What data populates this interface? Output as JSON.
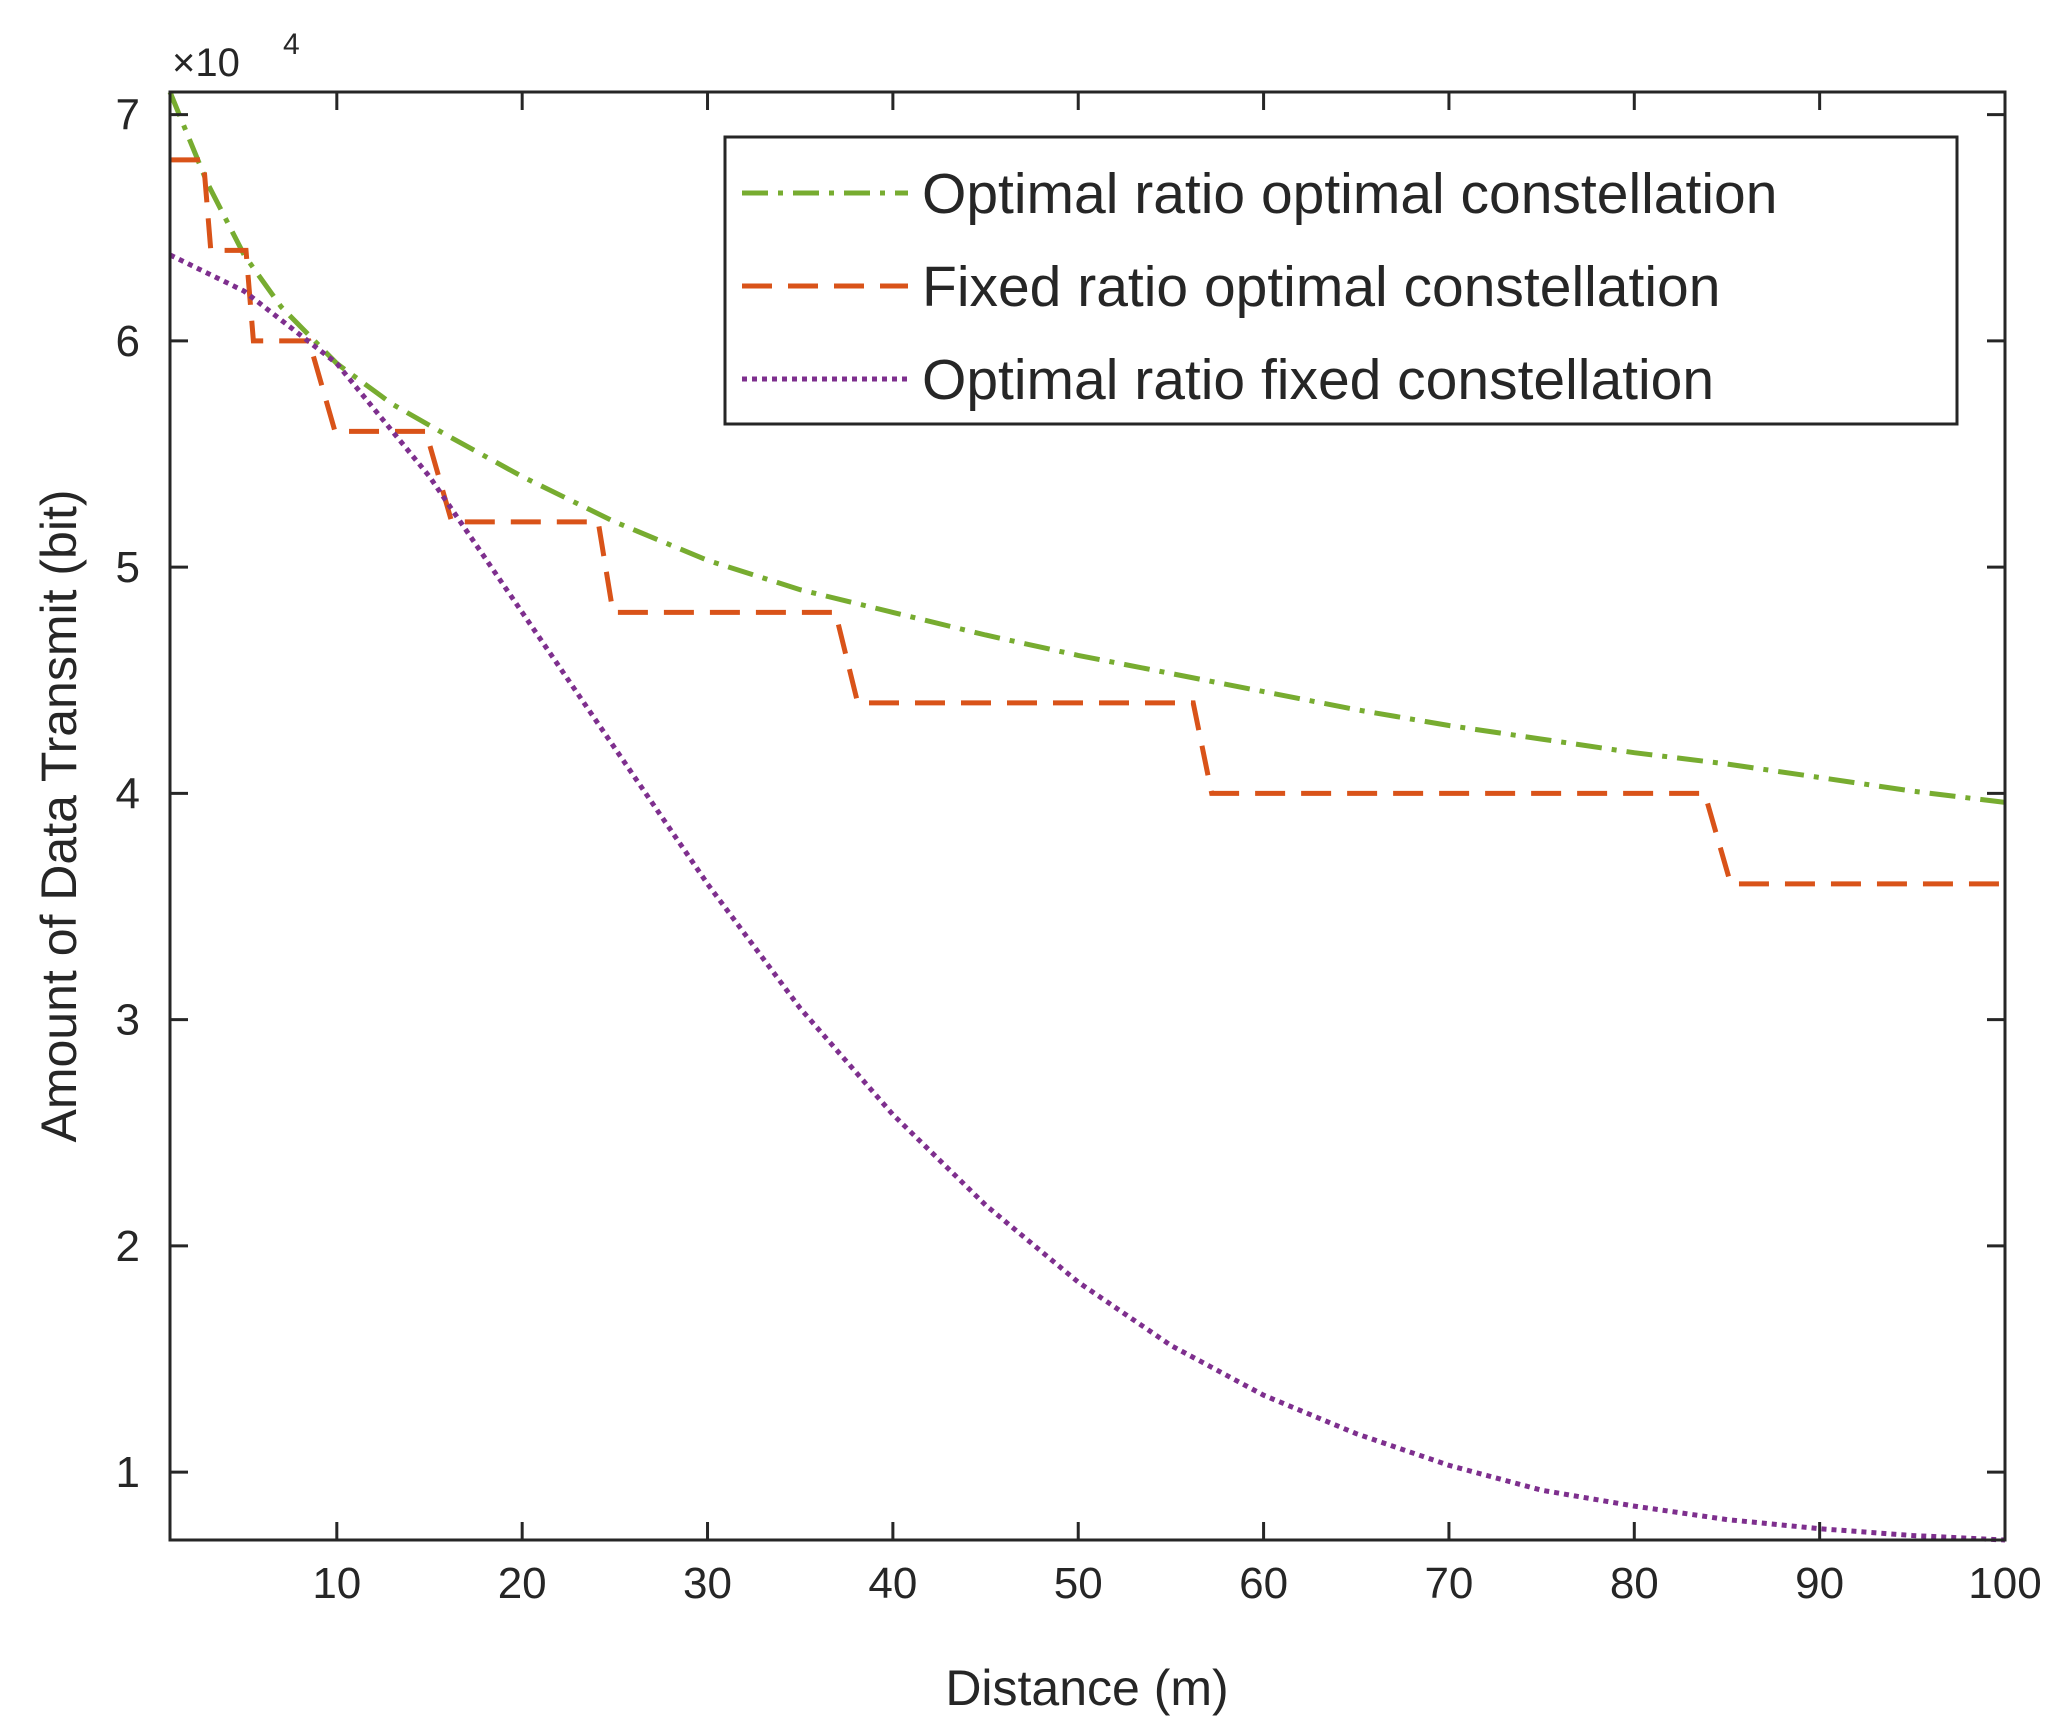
{
  "chart_data": {
    "type": "line",
    "xlabel": "Distance (m)",
    "ylabel": "Amount of Data Transmit (bit)",
    "xlim": [
      1,
      100
    ],
    "ylim": [
      0.7,
      7.1
    ],
    "y_multiplier_label": "×10",
    "y_multiplier_exponent": "4",
    "x_ticks": [
      10,
      20,
      30,
      40,
      50,
      60,
      70,
      80,
      90,
      100
    ],
    "y_ticks": [
      1,
      2,
      3,
      4,
      5,
      6,
      7
    ],
    "grid": false,
    "legend_position": "top-right",
    "series": [
      {
        "name": "Optimal ratio optimal constellation",
        "color": "#77ac30",
        "style": "dash-dot",
        "x": [
          1,
          3,
          5,
          7,
          10,
          13,
          16,
          20,
          25,
          30,
          35,
          40,
          45,
          50,
          55,
          60,
          65,
          70,
          75,
          80,
          85,
          90,
          95,
          100
        ],
        "y": [
          7.1,
          6.7,
          6.38,
          6.15,
          5.9,
          5.72,
          5.58,
          5.4,
          5.2,
          5.03,
          4.9,
          4.8,
          4.7,
          4.61,
          4.53,
          4.45,
          4.37,
          4.3,
          4.24,
          4.18,
          4.13,
          4.07,
          4.01,
          3.96
        ]
      },
      {
        "name": "Fixed ratio optimal constellation",
        "color": "#d95319",
        "style": "dashed",
        "x": [
          1,
          2.8,
          3.2,
          5.1,
          5.5,
          8.5,
          9.9,
          14.8,
          16.2,
          24.1,
          24.9,
          36.9,
          38.1,
          56.2,
          57.2,
          83.8,
          85.2,
          100
        ],
        "y": [
          6.8,
          6.8,
          6.4,
          6.4,
          6.0,
          6.0,
          5.6,
          5.6,
          5.2,
          5.2,
          4.8,
          4.8,
          4.4,
          4.4,
          4.0,
          4.0,
          3.6,
          3.6
        ]
      },
      {
        "name": "Optimal ratio fixed constellation",
        "color": "#7e2f8e",
        "style": "dotted",
        "x": [
          1,
          5,
          10,
          15,
          20,
          25,
          30,
          35,
          40,
          45,
          50,
          55,
          60,
          65,
          70,
          75,
          80,
          85,
          90,
          95,
          100
        ],
        "y": [
          6.38,
          6.22,
          5.9,
          5.4,
          4.8,
          4.2,
          3.6,
          3.05,
          2.58,
          2.18,
          1.84,
          1.56,
          1.34,
          1.17,
          1.03,
          0.92,
          0.85,
          0.79,
          0.75,
          0.72,
          0.7
        ]
      }
    ]
  }
}
